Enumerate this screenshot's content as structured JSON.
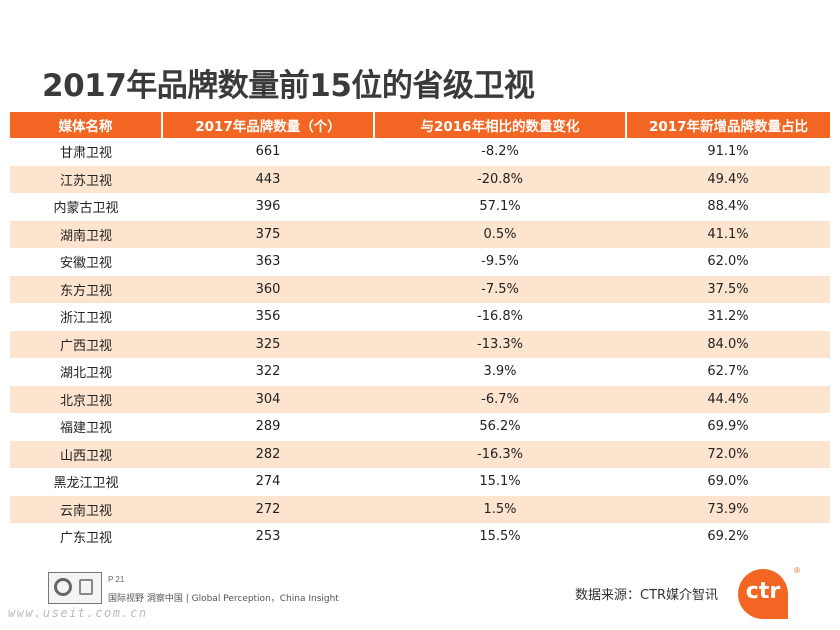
{
  "title": "2017年品牌数量前15位的省级卫视",
  "table": {
    "headers": [
      "媒体名称",
      "2017年品牌数量（个）",
      "与2016年相比的数量变化",
      "2017年新增品牌数量占比"
    ],
    "rows": [
      [
        "甘肃卫视",
        "661",
        "-8.2%",
        "91.1%"
      ],
      [
        "江苏卫视",
        "443",
        "-20.8%",
        "49.4%"
      ],
      [
        "内蒙古卫视",
        "396",
        "57.1%",
        "88.4%"
      ],
      [
        "湖南卫视",
        "375",
        "0.5%",
        "41.1%"
      ],
      [
        "安徽卫视",
        "363",
        "-9.5%",
        "62.0%"
      ],
      [
        "东方卫视",
        "360",
        "-7.5%",
        "37.5%"
      ],
      [
        "浙江卫视",
        "356",
        "-16.8%",
        "31.2%"
      ],
      [
        "广西卫视",
        "325",
        "-13.3%",
        "84.0%"
      ],
      [
        "湖北卫视",
        "322",
        "3.9%",
        "62.7%"
      ],
      [
        "北京卫视",
        "304",
        "-6.7%",
        "44.4%"
      ],
      [
        "福建卫视",
        "289",
        "56.2%",
        "69.9%"
      ],
      [
        "山西卫视",
        "282",
        "-16.3%",
        "72.0%"
      ],
      [
        "黑龙江卫视",
        "274",
        "15.1%",
        "69.0%"
      ],
      [
        "云南卫视",
        "272",
        "1.5%",
        "73.9%"
      ],
      [
        "广东卫视",
        "253",
        "15.5%",
        "69.2%"
      ]
    ]
  },
  "watermark_text": "CTR媒介智讯",
  "footer": {
    "page": "P 21",
    "tagline": "国际视野 洞察中国 | Global Perception，China Insight",
    "source": "数据来源：CTR媒介智讯",
    "logo_text": "ctr",
    "site_mark": "www.useit.com.cn"
  },
  "colors": {
    "header_bg": "#f26522",
    "stripe_bg": "#fde4cf",
    "brand_orange": "#f26522"
  }
}
